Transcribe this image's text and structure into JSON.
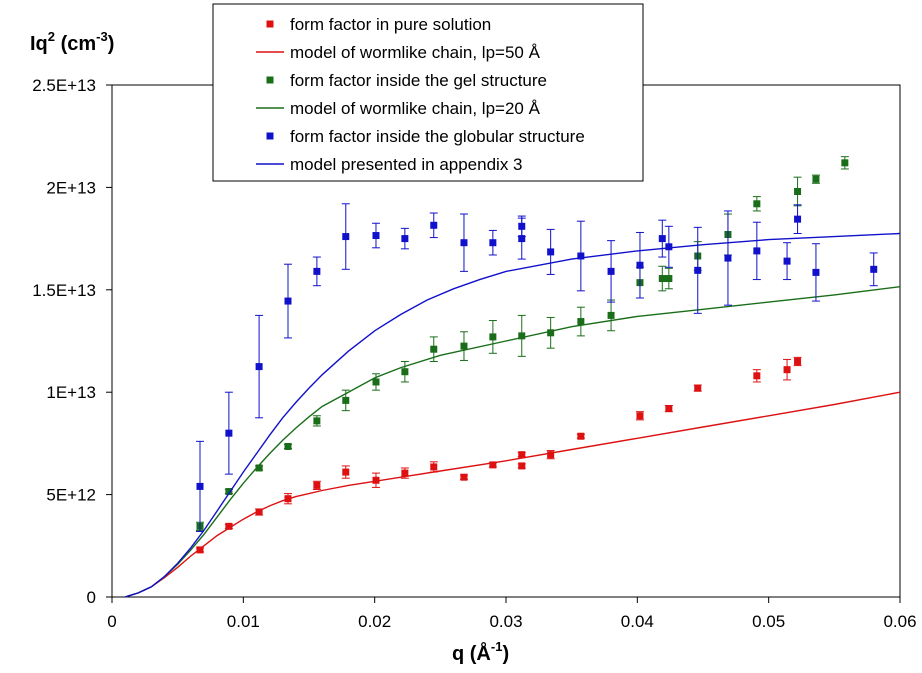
{
  "chart_data": {
    "type": "scatter",
    "xlabel": "q (Å",
    "xlabel_sup": "-1",
    "xlabel_end": ")",
    "ylabel": "Iq",
    "ylabel_sup1": "2",
    "ylabel_mid": " (cm",
    "ylabel_sup2": "-3",
    "ylabel_end": ")",
    "xlim": [
      0,
      0.06
    ],
    "ylim": [
      0,
      25000000000000.0
    ],
    "x_ticks": [
      0,
      0.01,
      0.02,
      0.03,
      0.04,
      0.05,
      0.06
    ],
    "x_tick_labels": [
      "0",
      "0.01",
      "0.02",
      "0.03",
      "0.04",
      "0.05",
      "0.06"
    ],
    "y_ticks": [
      0,
      5000000000000.0,
      10000000000000.0,
      15000000000000.0,
      20000000000000.0,
      25000000000000.0
    ],
    "y_tick_labels": [
      "0",
      "5E+12",
      "1E+13",
      "1.5E+13",
      "2E+13",
      "2.5E+13"
    ],
    "grid": false,
    "legend_position": "top-center",
    "series": [
      {
        "name": "form factor in pure solution",
        "kind": "points",
        "color": "#dd1111",
        "points": [
          [
            0.0067,
            2300000000000.0,
            100000000000.0
          ],
          [
            0.0089,
            3450000000000.0,
            100000000000.0
          ],
          [
            0.0112,
            4150000000000.0,
            150000000000.0
          ],
          [
            0.0134,
            4800000000000.0,
            250000000000.0
          ],
          [
            0.0156,
            5450000000000.0,
            200000000000.0
          ],
          [
            0.0178,
            6100000000000.0,
            300000000000.0
          ],
          [
            0.0201,
            5700000000000.0,
            350000000000.0
          ],
          [
            0.0223,
            6050000000000.0,
            250000000000.0
          ],
          [
            0.0245,
            6350000000000.0,
            250000000000.0
          ],
          [
            0.0268,
            5850000000000.0,
            100000000000.0
          ],
          [
            0.029,
            6450000000000.0,
            100000000000.0
          ],
          [
            0.0312,
            6400000000000.0,
            100000000000.0
          ],
          [
            0.0312,
            6950000000000.0,
            100000000000.0
          ],
          [
            0.0334,
            6950000000000.0,
            200000000000.0
          ],
          [
            0.0357,
            7850000000000.0,
            100000000000.0
          ],
          [
            0.0402,
            8850000000000.0,
            200000000000.0
          ],
          [
            0.0424,
            9200000000000.0,
            150000000000.0
          ],
          [
            0.0446,
            10200000000000.0,
            150000000000.0
          ],
          [
            0.0491,
            10800000000000.0,
            300000000000.0
          ],
          [
            0.0514,
            11100000000000.0,
            500000000000.0
          ],
          [
            0.0522,
            11500000000000.0,
            200000000000.0
          ]
        ]
      },
      {
        "name": "model of wormlike chain, lp=50 Å",
        "kind": "line",
        "color": "#dd1111",
        "x": [
          0.001,
          0.002,
          0.003,
          0.004,
          0.005,
          0.006,
          0.007,
          0.008,
          0.009,
          0.01,
          0.011,
          0.012,
          0.013,
          0.014,
          0.015,
          0.016,
          0.018,
          0.02,
          0.022,
          0.025,
          0.03,
          0.035,
          0.04,
          0.045,
          0.05,
          0.055,
          0.06
        ],
        "y": [
          0,
          200000000000.0,
          500000000000.0,
          950000000000.0,
          1450000000000.0,
          2000000000000.0,
          2500000000000.0,
          3000000000000.0,
          3400000000000.0,
          3800000000000.0,
          4150000000000.0,
          4450000000000.0,
          4700000000000.0,
          4900000000000.0,
          5050000000000.0,
          5200000000000.0,
          5450000000000.0,
          5650000000000.0,
          5850000000000.0,
          6150000000000.0,
          6650000000000.0,
          7200000000000.0,
          7750000000000.0,
          8300000000000.0,
          8850000000000.0,
          9400000000000.0,
          10000000000000.0
        ]
      },
      {
        "name": "form factor inside the gel structure",
        "kind": "points",
        "color": "#1a6e1a",
        "points": [
          [
            0.0067,
            3450000000000.0,
            200000000000.0
          ],
          [
            0.0089,
            5150000000000.0,
            100000000000.0
          ],
          [
            0.0112,
            6300000000000.0,
            100000000000.0
          ],
          [
            0.0134,
            7350000000000.0,
            100000000000.0
          ],
          [
            0.0156,
            8600000000000.0,
            250000000000.0
          ],
          [
            0.0178,
            9600000000000.0,
            500000000000.0
          ],
          [
            0.0201,
            10500000000000.0,
            400000000000.0
          ],
          [
            0.0223,
            11000000000000.0,
            500000000000.0
          ],
          [
            0.0245,
            12100000000000.0,
            600000000000.0
          ],
          [
            0.0268,
            12250000000000.0,
            700000000000.0
          ],
          [
            0.029,
            12700000000000.0,
            800000000000.0
          ],
          [
            0.0312,
            12750000000000.0,
            1000000000000.0
          ],
          [
            0.0334,
            12900000000000.0,
            750000000000.0
          ],
          [
            0.0357,
            13450000000000.0,
            700000000000.0
          ],
          [
            0.038,
            13750000000000.0,
            750000000000.0
          ],
          [
            0.0402,
            15350000000000.0,
            750000000000.0
          ],
          [
            0.0419,
            15550000000000.0,
            600000000000.0
          ],
          [
            0.0424,
            15550000000000.0,
            500000000000.0
          ],
          [
            0.0446,
            16650000000000.0,
            700000000000.0
          ],
          [
            0.0469,
            17700000000000.0,
            1000000000000.0
          ],
          [
            0.0491,
            19200000000000.0,
            350000000000.0
          ],
          [
            0.0522,
            19800000000000.0,
            700000000000.0
          ],
          [
            0.0536,
            20400000000000.0,
            200000000000.0
          ],
          [
            0.0558,
            21200000000000.0,
            300000000000.0
          ]
        ]
      },
      {
        "name": "model of wormlike chain, lp=20 Å",
        "kind": "line",
        "color": "#1a6e1a",
        "x": [
          0.001,
          0.002,
          0.003,
          0.004,
          0.005,
          0.006,
          0.007,
          0.008,
          0.009,
          0.01,
          0.011,
          0.012,
          0.013,
          0.014,
          0.015,
          0.016,
          0.018,
          0.02,
          0.022,
          0.025,
          0.03,
          0.035,
          0.04,
          0.045,
          0.05,
          0.055,
          0.06
        ],
        "y": [
          0,
          200000000000.0,
          500000000000.0,
          1000000000000.0,
          1600000000000.0,
          2300000000000.0,
          3050000000000.0,
          3900000000000.0,
          4750000000000.0,
          5550000000000.0,
          6300000000000.0,
          7000000000000.0,
          7650000000000.0,
          8250000000000.0,
          8800000000000.0,
          9300000000000.0,
          10000000000000.0,
          10700000000000.0,
          11200000000000.0,
          11800000000000.0,
          12500000000000.0,
          13200000000000.0,
          13700000000000.0,
          14050000000000.0,
          14400000000000.0,
          14750000000000.0,
          15150000000000.0
        ]
      },
      {
        "name": "form factor inside the globular structure",
        "kind": "points",
        "color": "#1111cc",
        "points": [
          [
            0.0067,
            5400000000000.0,
            2200000000000.0
          ],
          [
            0.0089,
            8000000000000.0,
            2000000000000.0
          ],
          [
            0.0112,
            11250000000000.0,
            2500000000000.0
          ],
          [
            0.0134,
            14450000000000.0,
            1800000000000.0
          ],
          [
            0.0156,
            15900000000000.0,
            700000000000.0
          ],
          [
            0.0178,
            17600000000000.0,
            1600000000000.0
          ],
          [
            0.0201,
            17650000000000.0,
            600000000000.0
          ],
          [
            0.0223,
            17500000000000.0,
            500000000000.0
          ],
          [
            0.0245,
            18150000000000.0,
            600000000000.0
          ],
          [
            0.0268,
            17300000000000.0,
            1400000000000.0
          ],
          [
            0.029,
            17300000000000.0,
            600000000000.0
          ],
          [
            0.0312,
            18100000000000.0,
            500000000000.0
          ],
          [
            0.0312,
            17500000000000.0,
            1000000000000.0
          ],
          [
            0.0334,
            16850000000000.0,
            1100000000000.0
          ],
          [
            0.0357,
            16650000000000.0,
            1700000000000.0
          ],
          [
            0.038,
            15900000000000.0,
            1500000000000.0
          ],
          [
            0.0402,
            16200000000000.0,
            1600000000000.0
          ],
          [
            0.0419,
            17500000000000.0,
            900000000000.0
          ],
          [
            0.0424,
            17100000000000.0,
            1000000000000.0
          ],
          [
            0.0446,
            15950000000000.0,
            2100000000000.0
          ],
          [
            0.0469,
            16550000000000.0,
            2300000000000.0
          ],
          [
            0.0491,
            16900000000000.0,
            1400000000000.0
          ],
          [
            0.0514,
            16400000000000.0,
            900000000000.0
          ],
          [
            0.0522,
            18450000000000.0,
            700000000000.0
          ],
          [
            0.0536,
            15850000000000.0,
            1400000000000.0
          ],
          [
            0.058,
            16000000000000.0,
            800000000000.0
          ]
        ]
      },
      {
        "name": "model presented in appendix 3",
        "kind": "line",
        "color": "#1111cc",
        "x": [
          0.001,
          0.002,
          0.003,
          0.004,
          0.005,
          0.006,
          0.007,
          0.008,
          0.009,
          0.01,
          0.011,
          0.012,
          0.013,
          0.014,
          0.015,
          0.016,
          0.018,
          0.02,
          0.022,
          0.024,
          0.026,
          0.028,
          0.03,
          0.035,
          0.04,
          0.045,
          0.05,
          0.055,
          0.06
        ],
        "y": [
          0,
          200000000000.0,
          500000000000.0,
          1000000000000.0,
          1650000000000.0,
          2400000000000.0,
          3250000000000.0,
          4200000000000.0,
          5150000000000.0,
          6100000000000.0,
          7000000000000.0,
          7900000000000.0,
          8750000000000.0,
          9500000000000.0,
          10200000000000.0,
          10850000000000.0,
          12000000000000.0,
          13000000000000.0,
          13800000000000.0,
          14500000000000.0,
          15050000000000.0,
          15500000000000.0,
          15900000000000.0,
          16500000000000.0,
          16900000000000.0,
          17200000000000.0,
          17450000000000.0,
          17600000000000.0,
          17750000000000.0
        ]
      }
    ]
  }
}
